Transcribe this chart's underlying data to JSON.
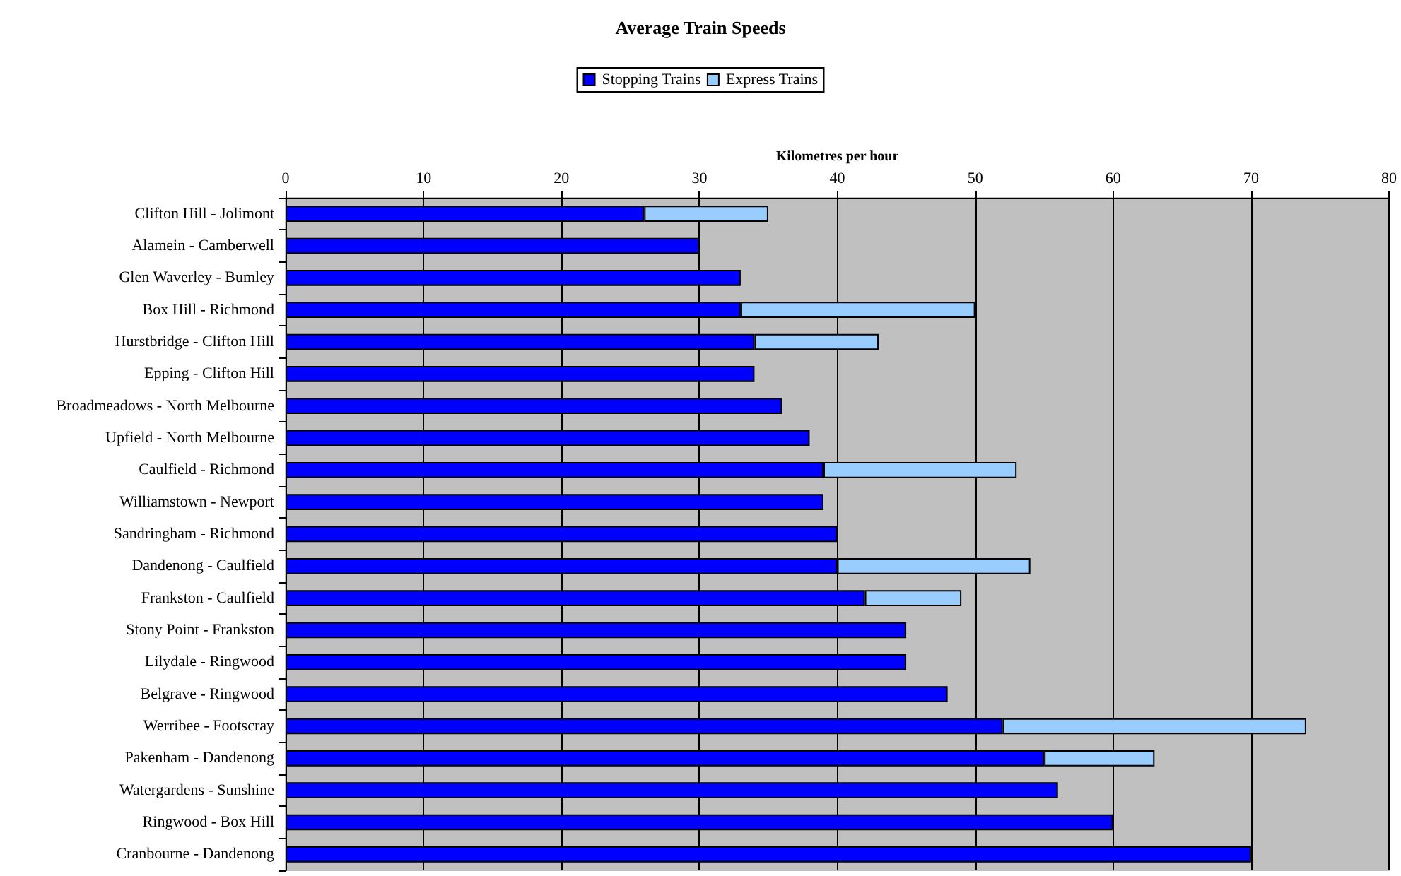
{
  "chart_data": {
    "type": "bar",
    "title": "Average Train Speeds",
    "xlabel": "Kilometres per hour",
    "orientation": "horizontal",
    "stacked": true,
    "categories": [
      "Clifton Hill - Jolimont",
      "Alamein - Camberwell",
      "Glen Waverley - Bumley",
      "Box Hill - Richmond",
      "Hurstbridge - Clifton Hill",
      "Epping - Clifton Hill",
      "Broadmeadows - North Melbourne",
      "Upfield - North Melbourne",
      "Caulfield - Richmond",
      "Williamstown - Newport",
      "Sandringham - Richmond",
      "Dandenong - Caulfield",
      "Frankston - Caulfield",
      "Stony Point - Frankston",
      "Lilydale - Ringwood",
      "Belgrave - Ringwood",
      "Werribee - Footscray",
      "Pakenham - Dandenong",
      "Watergardens - Sunshine",
      "Ringwood - Box Hill",
      "Cranbourne - Dandenong"
    ],
    "series": [
      {
        "name": "Stopping Trains",
        "color": "#0000ff",
        "values": [
          26,
          30,
          33,
          33,
          34,
          34,
          36,
          38,
          39,
          39,
          40,
          40,
          42,
          45,
          45,
          48,
          52,
          55,
          56,
          60,
          70
        ]
      },
      {
        "name": "Express Trains",
        "color": "#99ccff",
        "values": [
          9,
          null,
          null,
          17,
          9,
          null,
          null,
          null,
          14,
          null,
          null,
          14,
          7,
          null,
          null,
          null,
          22,
          8,
          null,
          null,
          null
        ]
      }
    ],
    "xlim": [
      0,
      80
    ],
    "xticks": [
      0,
      10,
      20,
      30,
      40,
      50,
      60,
      70,
      80
    ],
    "grid": "x",
    "legend": "top"
  }
}
